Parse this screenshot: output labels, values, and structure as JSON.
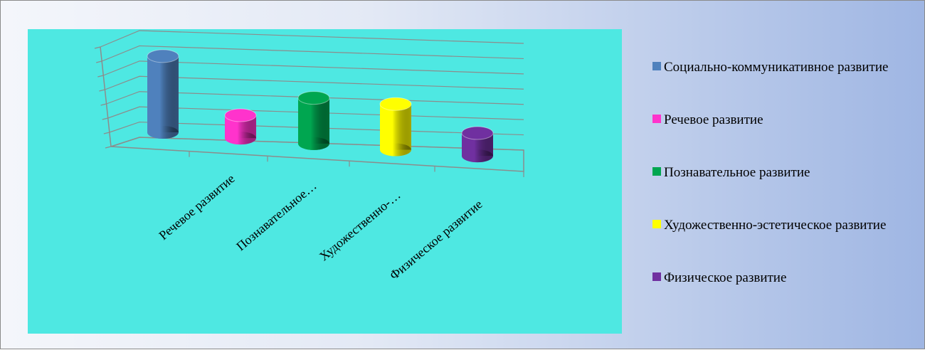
{
  "chart_data": {
    "type": "bar3d",
    "categories": [
      null,
      "Речевое развитие",
      "Познавательное…",
      "Художественно-…",
      "Физическое развитие"
    ],
    "series": [
      {
        "name": "Социально-коммуникативное развитие",
        "color": "#4f81bd",
        "values": [
          5,
          null,
          null,
          null,
          null
        ]
      },
      {
        "name": "Речевое развитие",
        "color": "#ff33cc",
        "values": [
          null,
          1.5,
          null,
          null,
          null
        ]
      },
      {
        "name": "Познавательное развитие",
        "color": "#00a650",
        "values": [
          null,
          null,
          3,
          null,
          null
        ]
      },
      {
        "name": "Художественно-эстетическое развитие",
        "color": "#ffff00",
        "values": [
          null,
          null,
          null,
          3,
          null
        ]
      },
      {
        "name": "Физическое развитие",
        "color": "#7030a0",
        "values": [
          null,
          null,
          null,
          null,
          1.5
        ]
      }
    ],
    "ylim": [
      0,
      7
    ],
    "yticks": [
      0,
      1,
      2,
      3,
      4,
      5,
      6,
      7
    ],
    "grid": true
  }
}
